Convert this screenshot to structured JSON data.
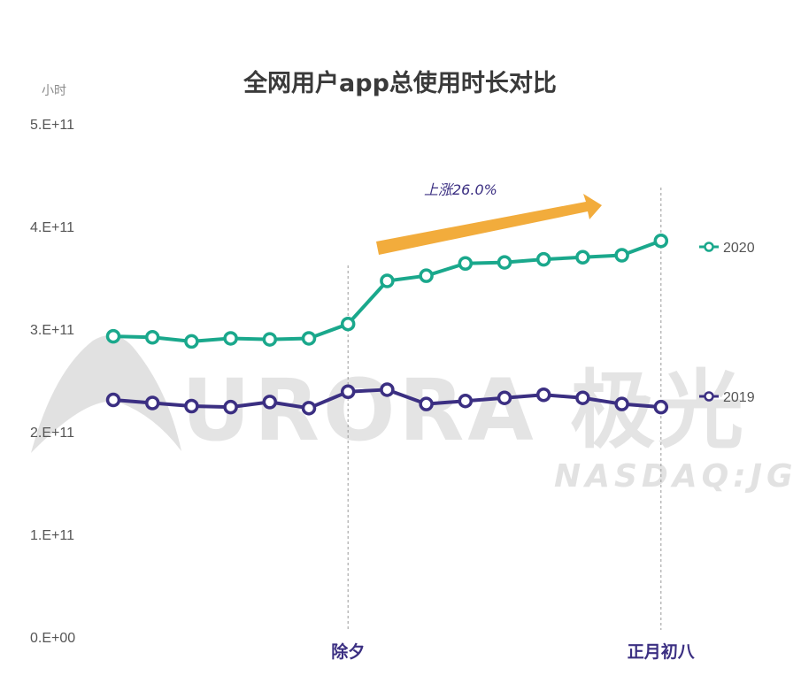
{
  "chart_data": {
    "type": "line",
    "title": "全网用户app总使用时长对比",
    "ylabel": "小时",
    "ylim": [
      0,
      500000000000.0
    ],
    "yticks": [
      "5.E+11",
      "4.E+11",
      "3.E+11",
      "2.E+11",
      "1.E+11",
      "0.E+00"
    ],
    "xtick_labels": [
      {
        "index": 6,
        "label": "除夕"
      },
      {
        "index": 14,
        "label": "正月初八"
      }
    ],
    "grid": false,
    "legend_position": "right",
    "series": [
      {
        "name": "2020",
        "color": "#1aa88c",
        "values": [
          293000000000.0,
          292000000000.0,
          288000000000.0,
          291000000000.0,
          290000000000.0,
          291000000000.0,
          305000000000.0,
          347000000000.0,
          352000000000.0,
          364000000000.0,
          365000000000.0,
          368000000000.0,
          370000000000.0,
          372000000000.0,
          386000000000.0
        ]
      },
      {
        "name": "2019",
        "color": "#3b2f82",
        "values": [
          231000000000.0,
          228000000000.0,
          225000000000.0,
          224000000000.0,
          229000000000.0,
          223000000000.0,
          239000000000.0,
          241000000000.0,
          227000000000.0,
          230000000000.0,
          233000000000.0,
          236000000000.0,
          233000000000.0,
          227000000000.0,
          224000000000.0
        ]
      }
    ],
    "annotations": [
      {
        "text": "上涨26.0%",
        "color": "#3b2f82",
        "arrow_color": "#f2ac3c"
      }
    ]
  },
  "watermark": {
    "main": "URORA 极光",
    "sub": "NASDAQ:JG",
    "color": "#cfcfcf"
  }
}
